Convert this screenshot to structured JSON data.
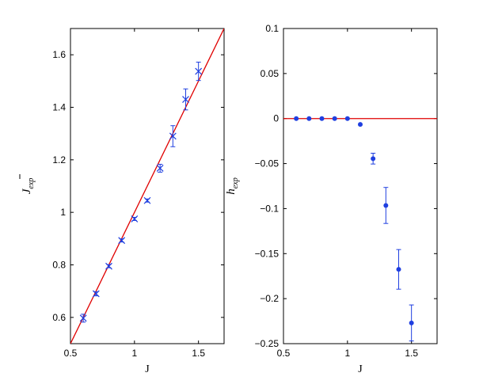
{
  "chart_data": [
    {
      "type": "scatter",
      "title": "",
      "xlabel": "J",
      "ylabel": {
        "main": "J",
        "subscript": "exp",
        "bar": true
      },
      "xlim": [
        0.5,
        1.7
      ],
      "ylim": [
        0.5,
        1.7
      ],
      "xticks": [
        0.5,
        1,
        1.5
      ],
      "xtick_labels": [
        "0.5",
        "1",
        "1.5"
      ],
      "yticks": [
        0.6,
        0.8,
        1.0,
        1.2,
        1.4,
        1.6
      ],
      "ytick_labels": [
        "0.6",
        "0.8",
        "1",
        "1.2",
        "1.4",
        "1.6"
      ],
      "grid": false,
      "legend": "none",
      "reference_line": {
        "color": "#e00000",
        "points": [
          [
            0.5,
            0.5
          ],
          [
            1.7,
            1.7
          ]
        ]
      },
      "series": [
        {
          "marker": "x",
          "color": "#1f3fe0",
          "points": [
            {
              "x": 0.6,
              "y": 0.597,
              "err": 0.015
            },
            {
              "x": 0.7,
              "y": 0.69,
              "err": 0.008
            },
            {
              "x": 0.8,
              "y": 0.795,
              "err": 0.006
            },
            {
              "x": 0.9,
              "y": 0.893,
              "err": 0.006
            },
            {
              "x": 1.0,
              "y": 0.975,
              "err": 0.006
            },
            {
              "x": 1.1,
              "y": 1.045,
              "err": 0.006
            },
            {
              "x": 1.2,
              "y": 1.168,
              "err": 0.015
            },
            {
              "x": 1.3,
              "y": 1.29,
              "err": 0.04
            },
            {
              "x": 1.4,
              "y": 1.43,
              "err": 0.04
            },
            {
              "x": 1.5,
              "y": 1.537,
              "err": 0.035
            }
          ]
        }
      ]
    },
    {
      "type": "scatter",
      "title": "",
      "xlabel": "J",
      "ylabel": {
        "main": "h",
        "subscript": "exp",
        "bar": true
      },
      "xlim": [
        0.5,
        1.7
      ],
      "ylim": [
        -0.25,
        0.1
      ],
      "xticks": [
        0.5,
        1,
        1.5
      ],
      "xtick_labels": [
        "0.5",
        "1",
        "1.5"
      ],
      "yticks": [
        0.1,
        0.05,
        0,
        -0.05,
        -0.1,
        -0.15,
        -0.2,
        -0.25
      ],
      "ytick_labels": [
        "0.1",
        "0.05",
        "0",
        "−0.05",
        "−0.1",
        "−0.15",
        "−0.2",
        "−0.25"
      ],
      "grid": false,
      "legend": "none",
      "reference_line": {
        "color": "#e00000",
        "points": [
          [
            0.5,
            0
          ],
          [
            1.7,
            0
          ]
        ]
      },
      "series": [
        {
          "marker": "dot",
          "color": "#1f3fe0",
          "points": [
            {
              "x": 0.6,
              "y": 0.0,
              "err": 0
            },
            {
              "x": 0.7,
              "y": 0.0,
              "err": 0
            },
            {
              "x": 0.8,
              "y": 0.0,
              "err": 0
            },
            {
              "x": 0.9,
              "y": 0.0,
              "err": 0
            },
            {
              "x": 1.0,
              "y": 0.0,
              "err": 0
            },
            {
              "x": 1.1,
              "y": -0.0065,
              "err": 0
            },
            {
              "x": 1.2,
              "y": -0.0445,
              "err": 0.006
            },
            {
              "x": 1.3,
              "y": -0.0965,
              "err": 0.02
            },
            {
              "x": 1.4,
              "y": -0.1675,
              "err": 0.022
            },
            {
              "x": 1.5,
              "y": -0.227,
              "err": 0.02
            }
          ]
        }
      ]
    }
  ]
}
